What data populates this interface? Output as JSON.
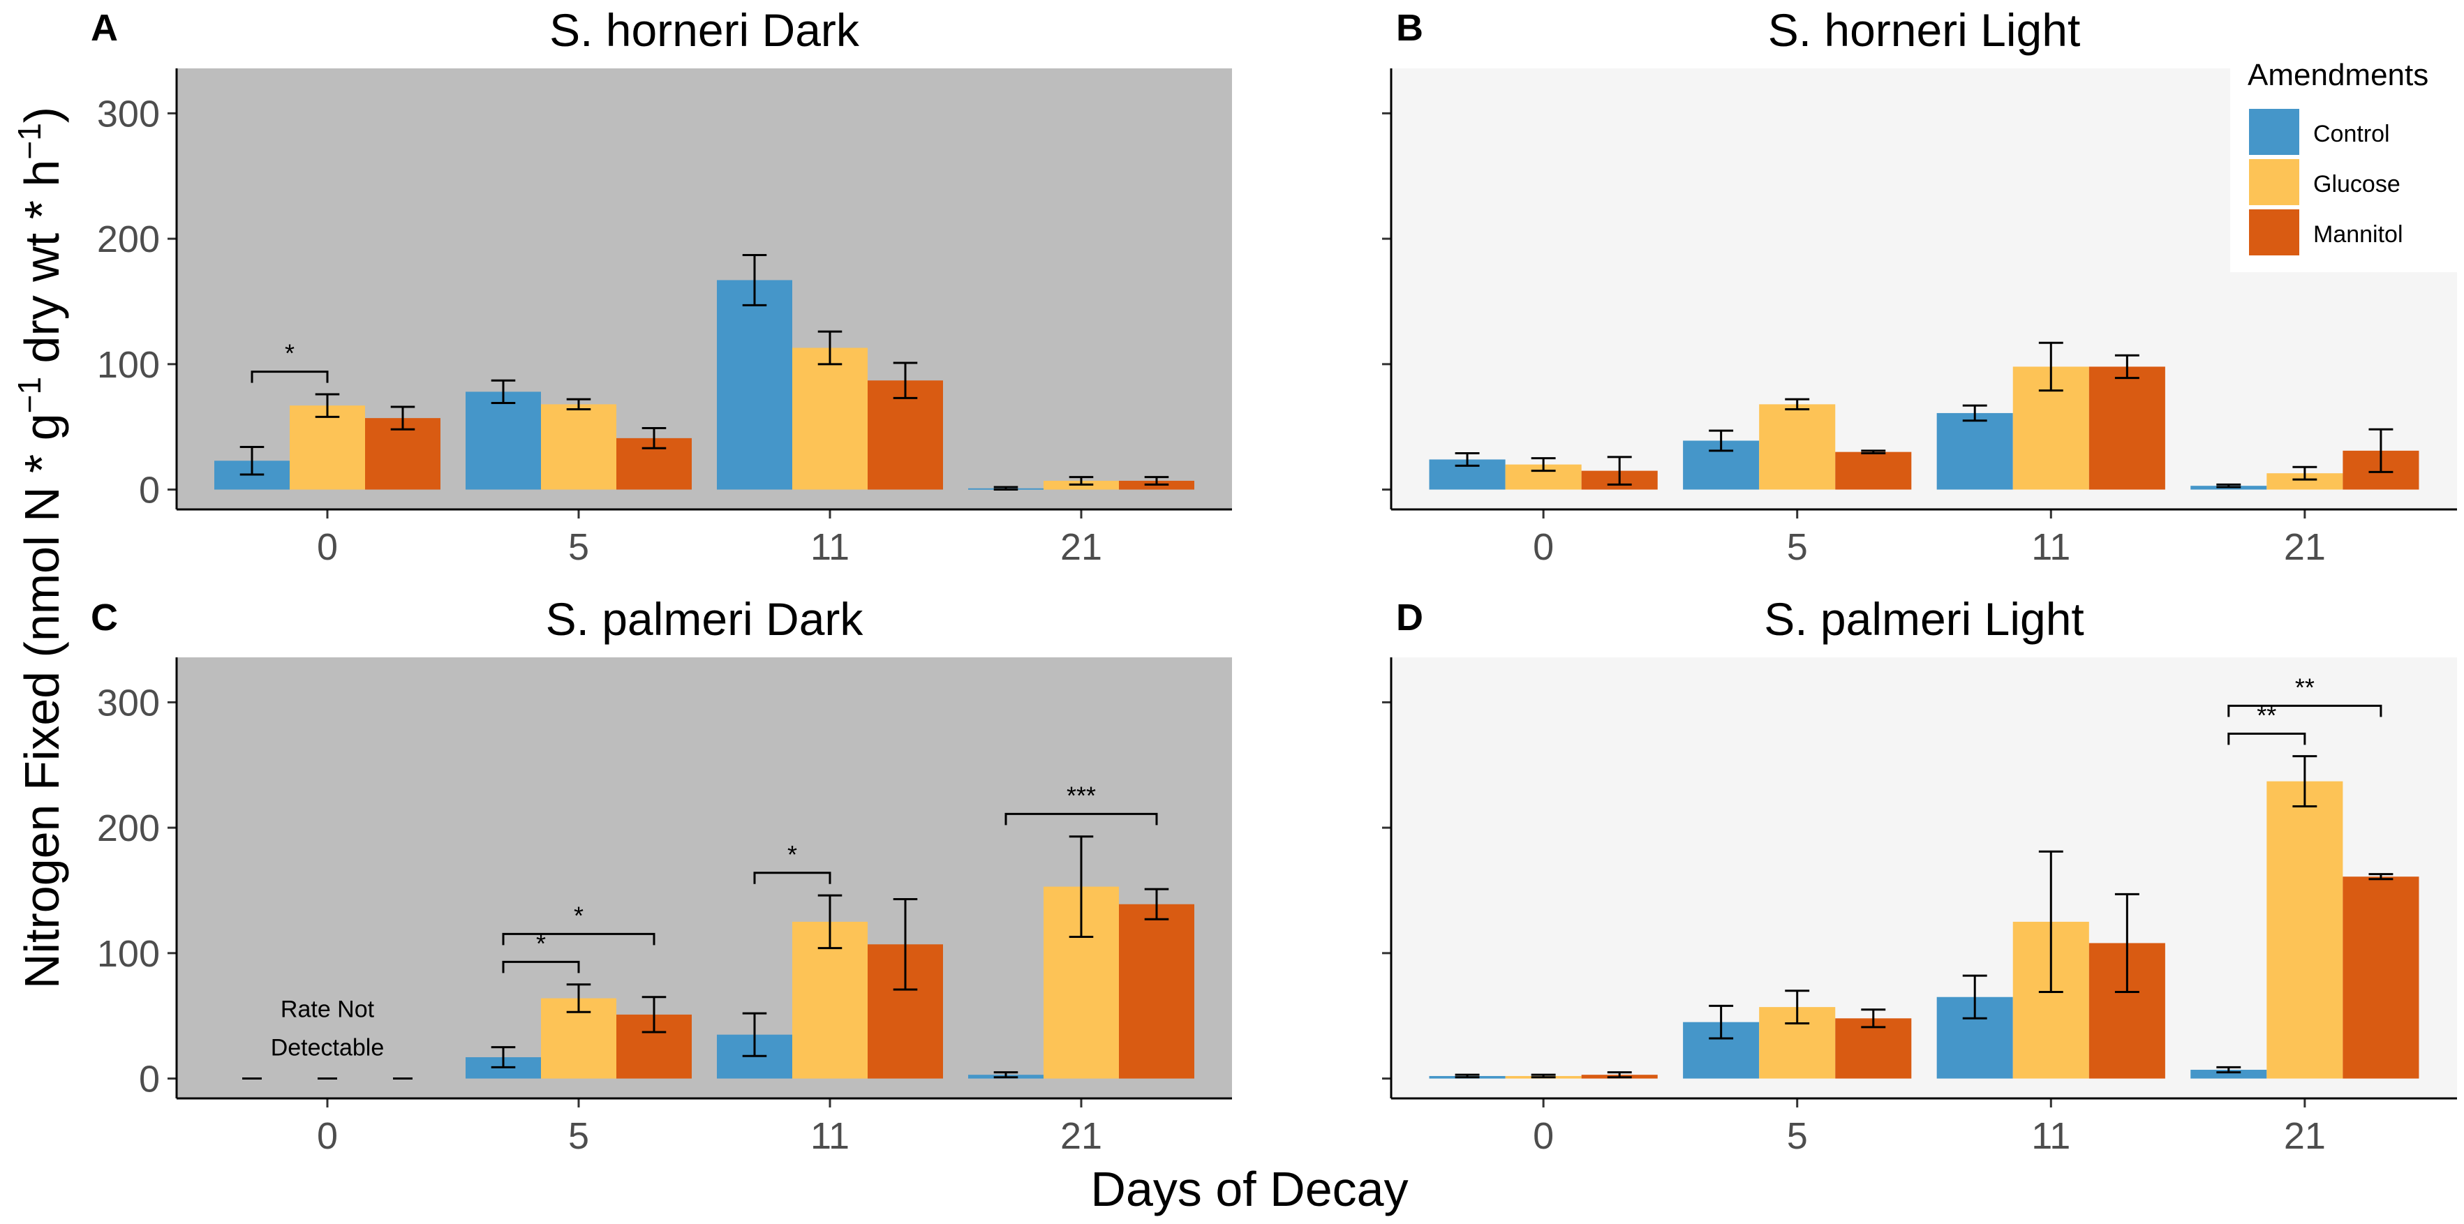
{
  "chart_data": [
    {
      "panel": "A",
      "type": "bar",
      "title": "S. horneri Dark",
      "background": "#bdbdbd",
      "categories": [
        "0",
        "5",
        "11",
        "21"
      ],
      "series": [
        {
          "name": "Control",
          "values": [
            23,
            78,
            167,
            1
          ],
          "errors": [
            11,
            9,
            20,
            1
          ]
        },
        {
          "name": "Glucose",
          "values": [
            67,
            68,
            113,
            7
          ],
          "errors": [
            9,
            4,
            13,
            3
          ]
        },
        {
          "name": "Mannitol",
          "values": [
            57,
            41,
            87,
            7
          ],
          "errors": [
            9,
            8,
            14,
            3
          ]
        }
      ],
      "significance": [
        {
          "category": 0,
          "from": 0,
          "to": 1,
          "label": "*",
          "level": 0
        }
      ],
      "annotations": [],
      "ylim": [
        0,
        320
      ]
    },
    {
      "panel": "B",
      "type": "bar",
      "title": "S. horneri Light",
      "background": "#f5f5f5",
      "categories": [
        "0",
        "5",
        "11",
        "21"
      ],
      "series": [
        {
          "name": "Control",
          "values": [
            24,
            39,
            61,
            3
          ],
          "errors": [
            5,
            8,
            6,
            1
          ]
        },
        {
          "name": "Glucose",
          "values": [
            20,
            68,
            98,
            13
          ],
          "errors": [
            5,
            4,
            19,
            5
          ]
        },
        {
          "name": "Mannitol",
          "values": [
            15,
            30,
            98,
            31
          ],
          "errors": [
            11,
            1,
            9,
            17
          ]
        }
      ],
      "significance": [],
      "annotations": [],
      "ylim": [
        0,
        320
      ]
    },
    {
      "panel": "C",
      "type": "bar",
      "title": "S. palmeri Dark",
      "background": "#bdbdbd",
      "categories": [
        "0",
        "5",
        "11",
        "21"
      ],
      "series": [
        {
          "name": "Control",
          "values": [
            0,
            17,
            35,
            3
          ],
          "errors": [
            0,
            8,
            17,
            2
          ]
        },
        {
          "name": "Glucose",
          "values": [
            0,
            64,
            125,
            153
          ],
          "errors": [
            0,
            11,
            21,
            40
          ]
        },
        {
          "name": "Mannitol",
          "values": [
            0,
            51,
            107,
            139
          ],
          "errors": [
            0,
            14,
            36,
            12
          ]
        }
      ],
      "significance": [
        {
          "category": 1,
          "from": 0,
          "to": 1,
          "label": "*",
          "level": 0
        },
        {
          "category": 1,
          "from": 0,
          "to": 2,
          "label": "*",
          "level": 1
        },
        {
          "category": 2,
          "from": 0,
          "to": 1,
          "label": "*",
          "level": 0
        },
        {
          "category": 3,
          "from": 0,
          "to": 2,
          "label": "***",
          "level": 0
        }
      ],
      "annotations": [
        {
          "category": 0,
          "lines": [
            "Rate Not",
            "Detectable"
          ]
        }
      ],
      "ylim": [
        0,
        320
      ]
    },
    {
      "panel": "D",
      "type": "bar",
      "title": "S. palmeri Light",
      "background": "#f5f5f5",
      "categories": [
        "0",
        "5",
        "11",
        "21"
      ],
      "series": [
        {
          "name": "Control",
          "values": [
            2,
            45,
            65,
            7
          ],
          "errors": [
            1,
            13,
            17,
            2
          ]
        },
        {
          "name": "Glucose",
          "values": [
            2,
            57,
            125,
            237
          ],
          "errors": [
            1,
            13,
            56,
            20
          ]
        },
        {
          "name": "Mannitol",
          "values": [
            3,
            48,
            108,
            161
          ],
          "errors": [
            2,
            7,
            39,
            2
          ]
        }
      ],
      "significance": [
        {
          "category": 3,
          "from": 0,
          "to": 1,
          "label": "**",
          "level": 0
        },
        {
          "category": 3,
          "from": 0,
          "to": 2,
          "label": "**",
          "level": 1
        }
      ],
      "annotations": [],
      "ylim": [
        0,
        320
      ]
    }
  ],
  "y_ticks": [
    0,
    100,
    200,
    300
  ],
  "xlabel": "Days of Decay",
  "ylabel": {
    "main": "Nitrogen Fixed (nmol N * g",
    "sup1": "−1",
    "mid": " dry wt * h",
    "sup2": "−1",
    "end": ")"
  },
  "legend": {
    "title": "Amendments",
    "items": [
      {
        "name": "Control",
        "color": "#4596c9"
      },
      {
        "name": "Glucose",
        "color": "#fdc356"
      },
      {
        "name": "Mannitol",
        "color": "#d95b12"
      }
    ]
  }
}
